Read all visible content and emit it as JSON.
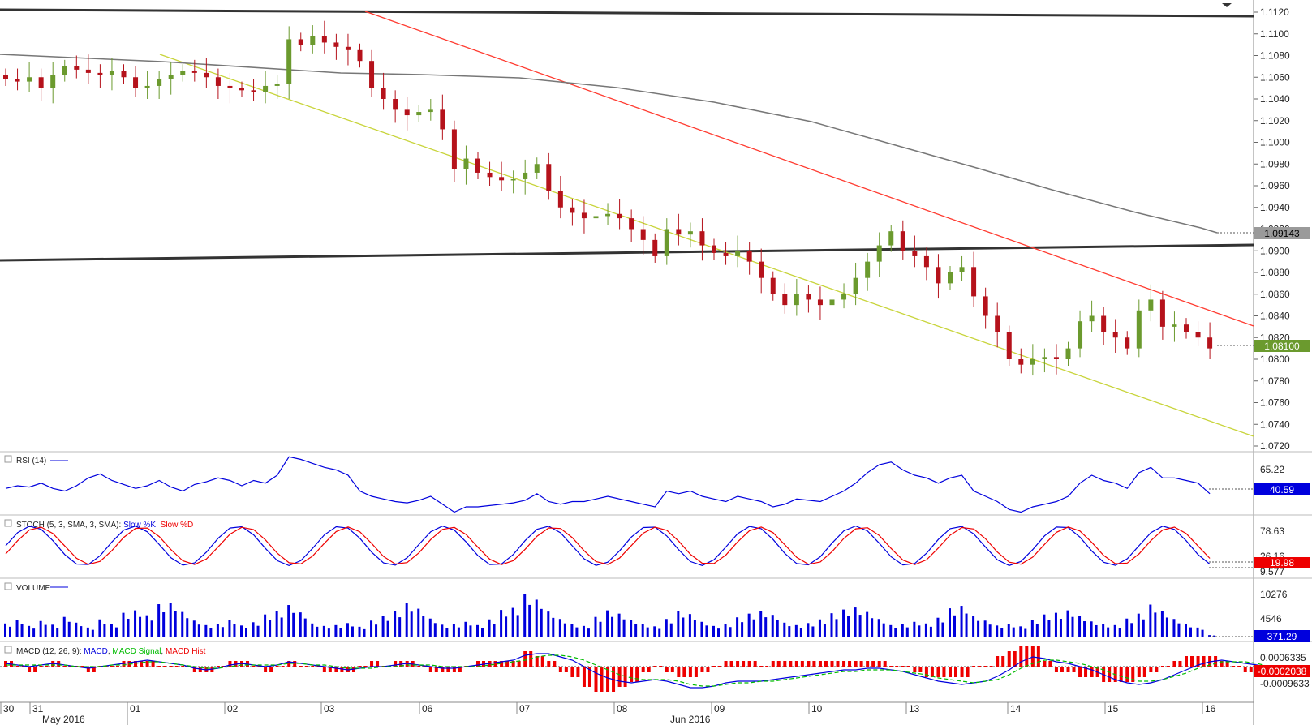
{
  "chart_data": [
    {
      "type": "candlestick",
      "name": "price",
      "y_axis": {
        "range": [
          1.071,
          1.1125
        ],
        "ticks": [
          "1.1120",
          "1.1100",
          "1.1080",
          "1.1060",
          "1.1040",
          "1.1020",
          "1.1000",
          "1.0980",
          "1.0960",
          "1.0940",
          "1.0920",
          "1.0900",
          "1.0880",
          "1.0860",
          "1.0840",
          "1.0820",
          "1.0800",
          "1.0780",
          "1.0760",
          "1.0740",
          "1.0720"
        ]
      },
      "ma_last": "1.09143",
      "last_price": "1.08100",
      "close_path": [
        1.1058,
        1.1056,
        1.106,
        1.105,
        1.1062,
        1.107,
        1.1067,
        1.1064,
        1.1062,
        1.1066,
        1.106,
        1.105,
        1.1052,
        1.1058,
        1.1062,
        1.1066,
        1.1064,
        1.106,
        1.1052,
        1.105,
        1.1048,
        1.1046,
        1.1052,
        1.1054,
        1.1095,
        1.109,
        1.1098,
        1.1092,
        1.1088,
        1.1085,
        1.1075,
        1.105,
        1.104,
        1.103,
        1.1025,
        1.1028,
        1.103,
        1.1012,
        1.0975,
        1.0985,
        1.0972,
        1.0968,
        1.0965,
        1.0966,
        1.0972,
        1.098,
        1.0955,
        1.094,
        1.0935,
        1.093,
        1.0932,
        1.0934,
        1.093,
        1.092,
        1.091,
        1.0895,
        1.092,
        1.0915,
        1.0918,
        1.0905,
        1.0898,
        1.0895,
        1.09,
        1.089,
        1.0875,
        1.086,
        1.085,
        1.086,
        1.0855,
        1.085,
        1.0855,
        1.086,
        1.0875,
        1.089,
        1.0905,
        1.0918,
        1.09,
        1.0895,
        1.0885,
        1.087,
        1.088,
        1.0885,
        1.0858,
        1.084,
        1.0825,
        1.08,
        1.0795,
        1.08,
        1.0802,
        1.08,
        1.081,
        1.0835,
        1.084,
        1.0825,
        1.082,
        1.081,
        1.0845,
        1.0855,
        1.083,
        1.0832,
        1.0825,
        1.082,
        1.081
      ]
    },
    {
      "type": "line",
      "name": "RSI (14)",
      "ticks": [
        "65.22"
      ],
      "last": "40.59",
      "values": [
        44,
        46,
        45,
        48,
        44,
        42,
        46,
        52,
        55,
        50,
        47,
        44,
        46,
        50,
        45,
        42,
        47,
        49,
        52,
        50,
        46,
        50,
        48,
        54,
        68,
        66,
        63,
        60,
        58,
        54,
        42,
        38,
        36,
        34,
        33,
        35,
        38,
        32,
        26,
        30,
        30,
        31,
        32,
        33,
        35,
        40,
        34,
        32,
        34,
        34,
        36,
        38,
        36,
        34,
        32,
        30,
        42,
        40,
        42,
        38,
        36,
        34,
        38,
        36,
        34,
        30,
        32,
        36,
        35,
        34,
        38,
        42,
        48,
        56,
        62,
        64,
        58,
        54,
        52,
        48,
        52,
        54,
        42,
        38,
        34,
        28,
        26,
        30,
        32,
        34,
        38,
        48,
        54,
        50,
        48,
        44,
        56,
        60,
        52,
        52,
        50,
        48,
        40
      ]
    },
    {
      "type": "line",
      "name": "STOCH (5, 3, SMA, 3, SMA)",
      "series": [
        {
          "name": "Slow %K",
          "color": "#0000dd"
        },
        {
          "name": "Slow %D",
          "color": "#ee0000"
        }
      ],
      "ticks": [
        "78.63",
        "26.16",
        "9.577"
      ],
      "last": "19.98"
    },
    {
      "type": "bar",
      "name": "VOLUME",
      "ticks": [
        "10276",
        "4546"
      ],
      "last": "371.29",
      "values": [
        3200,
        4100,
        2600,
        3800,
        2900,
        4800,
        3400,
        2200,
        4200,
        3000,
        5800,
        6400,
        5200,
        7900,
        8200,
        6000,
        3900,
        2800,
        3100,
        4000,
        2700,
        3500,
        5400,
        6200,
        7700,
        5900,
        3200,
        2600,
        2800,
        3300,
        2400,
        3900,
        5100,
        6300,
        8100,
        6800,
        4400,
        2900,
        3000,
        3600,
        2800,
        4200,
        6500,
        7000,
        10300,
        9000,
        6100,
        4300,
        3000,
        2600,
        4800,
        6400,
        5600,
        4000,
        3000,
        2500,
        4300,
        6200,
        5500,
        3600,
        2600,
        3100,
        4700,
        5600,
        6300,
        5300,
        3400,
        2800,
        3300,
        4200,
        5700,
        6600,
        7100,
        6000,
        4300,
        2800,
        3000,
        3600,
        3200,
        4600,
        6900,
        7500,
        5100,
        3900,
        2700,
        3000,
        2500,
        4000,
        5400,
        5800,
        6400,
        5000,
        3700,
        3000,
        2800,
        4400,
        5600,
        7800,
        6200,
        4300,
        3000,
        2200,
        371
      ]
    },
    {
      "type": "line",
      "name": "MACD (12, 26, 9)",
      "series": [
        {
          "name": "MACD",
          "color": "#0000dd"
        },
        {
          "name": "MACD Signal",
          "color": "#00bb00"
        },
        {
          "name": "MACD Hist",
          "color": "#ee0000"
        }
      ],
      "ticks": [
        "0.0006335",
        "-0.0009633"
      ],
      "last": "-0.0002038",
      "macd": [
        0.0002,
        0.0001,
        0.0,
        0.0001,
        0.0002,
        0.0001,
        0.0,
        -0.0001,
        0.0,
        0.0001,
        0.0002,
        0.0003,
        0.0004,
        0.0003,
        0.0002,
        0.0001,
        -0.0001,
        -0.0002,
        -0.0001,
        0.0001,
        0.0002,
        0.0001,
        0.0,
        0.0001,
        0.0003,
        0.0002,
        0.0001,
        0.0,
        -0.0001,
        -0.0002,
        -0.0001,
        0.0,
        0.0,
        0.0001,
        0.0002,
        0.0001,
        0.0,
        -0.0001,
        -0.0001,
        0.0,
        0.0001,
        0.0002,
        0.0003,
        0.0004,
        0.0007,
        0.0008,
        0.0008,
        0.0006,
        0.0004,
        0.0,
        -0.0004,
        -0.0007,
        -0.0009,
        -0.001,
        -0.0009,
        -0.0008,
        -0.0009,
        -0.0011,
        -0.0013,
        -0.0013,
        -0.0012,
        -0.001,
        -0.0009,
        -0.0009,
        -0.0009,
        -0.0008,
        -0.0007,
        -0.0006,
        -0.0005,
        -0.0004,
        -0.0003,
        -0.0002,
        -0.0002,
        -0.0001,
        -0.0001,
        -0.0002,
        -0.0003,
        -0.0005,
        -0.0007,
        -0.0009,
        -0.001,
        -0.0011,
        -0.001,
        -0.0009,
        -0.0006,
        -0.0002,
        0.0003,
        0.0006,
        0.0005,
        0.0003,
        0.0002,
        0.0,
        -0.0002,
        -0.0005,
        -0.0008,
        -0.001,
        -0.0011,
        -0.001,
        -0.0008,
        -0.0005,
        -0.0002,
        0.0001,
        0.0003,
        0.0004,
        0.0003,
        0.0002,
        0.0001,
        -0.0001,
        -0.0002
      ],
      "signal": [
        0.0001,
        0.0001,
        0.0001,
        0.0001,
        0.0001,
        0.0001,
        0.0,
        0.0,
        0.0,
        0.0001,
        0.0001,
        0.0002,
        0.0003,
        0.0003,
        0.0002,
        0.0001,
        0.0,
        -0.0001,
        -0.0001,
        0.0,
        0.0001,
        0.0001,
        0.0001,
        0.0001,
        0.0002,
        0.0002,
        0.0001,
        0.0001,
        0.0,
        -0.0001,
        -0.0001,
        -0.0001,
        0.0,
        0.0,
        0.0001,
        0.0001,
        0.0001,
        0.0,
        0.0,
        0.0,
        0.0,
        0.0001,
        0.0002,
        0.0003,
        0.0004,
        0.0006,
        0.0007,
        0.0007,
        0.0006,
        0.0004,
        0.0001,
        -0.0002,
        -0.0005,
        -0.0007,
        -0.0008,
        -0.0008,
        -0.0008,
        -0.0009,
        -0.0011,
        -0.0012,
        -0.0012,
        -0.0011,
        -0.001,
        -0.001,
        -0.0009,
        -0.0009,
        -0.0008,
        -0.0007,
        -0.0006,
        -0.0005,
        -0.0004,
        -0.0003,
        -0.0003,
        -0.0002,
        -0.0002,
        -0.0002,
        -0.0003,
        -0.0004,
        -0.0005,
        -0.0007,
        -0.0008,
        -0.0009,
        -0.001,
        -0.0009,
        -0.0008,
        -0.0005,
        -0.0001,
        0.0002,
        0.0004,
        0.0004,
        0.0003,
        0.0002,
        0.0,
        -0.0002,
        -0.0005,
        -0.0007,
        -0.0009,
        -0.0009,
        -0.0008,
        -0.0006,
        -0.0004,
        -0.0001,
        0.0001,
        0.0003,
        0.0003,
        0.0003,
        0.0002,
        0.0,
        -0.0001
      ]
    }
  ],
  "x_axis": {
    "day_labels": [
      "30",
      "31",
      "01",
      "02",
      "03",
      "06",
      "07",
      "08",
      "09",
      "10",
      "13",
      "14",
      "15",
      "16"
    ],
    "month_labels": [
      "May 2016",
      "Jun 2016"
    ]
  },
  "colors": {
    "up": "#6b9a2e",
    "down": "#b5121b",
    "trend_red": "#ff3b30",
    "channel_lower": "#c8d43a",
    "horizontal": "#333333",
    "ma": "#777777",
    "price_tag": "#6b9a2e",
    "rsi": "#0000dd",
    "volume": "#0000dd"
  }
}
